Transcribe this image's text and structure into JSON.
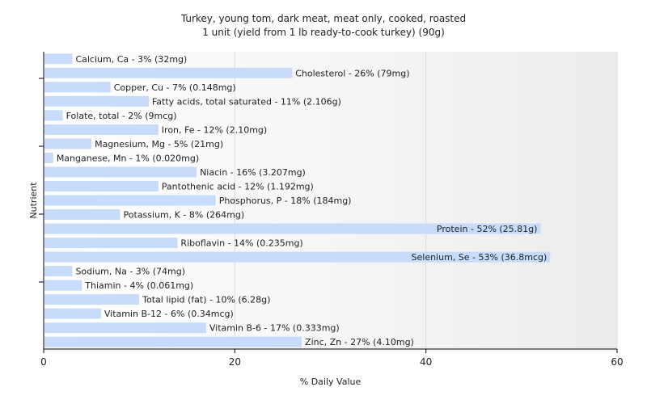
{
  "chart_data": {
    "type": "bar",
    "orientation": "horizontal",
    "title": "Turkey, young tom, dark meat, meat only, cooked, roasted",
    "subtitle": "1 unit (yield from 1 lb ready-to-cook turkey) (90g)",
    "xlabel": "% Daily Value",
    "ylabel": "Nutrient",
    "xlim": [
      0,
      60
    ],
    "x_ticks": [
      0,
      20,
      40,
      60
    ],
    "grid": true,
    "bar_color": "#c6dcfa",
    "categories": [
      "Calcium, Ca",
      "Cholesterol",
      "Copper, Cu",
      "Fatty acids, total saturated",
      "Folate, total",
      "Iron, Fe",
      "Magnesium, Mg",
      "Manganese, Mn",
      "Niacin",
      "Pantothenic acid",
      "Phosphorus, P",
      "Potassium, K",
      "Protein",
      "Riboflavin",
      "Selenium, Se",
      "Sodium, Na",
      "Thiamin",
      "Total lipid (fat)",
      "Vitamin B-12",
      "Vitamin B-6",
      "Zinc, Zn"
    ],
    "values": [
      3,
      26,
      7,
      11,
      2,
      12,
      5,
      1,
      16,
      12,
      18,
      8,
      52,
      14,
      53,
      3,
      4,
      10,
      6,
      17,
      27
    ],
    "labels": [
      "Calcium, Ca - 3% (32mg)",
      "Cholesterol - 26% (79mg)",
      "Copper, Cu - 7% (0.148mg)",
      "Fatty acids, total saturated - 11% (2.106g)",
      "Folate, total - 2% (9mcg)",
      "Iron, Fe - 12% (2.10mg)",
      "Magnesium, Mg - 5% (21mg)",
      "Manganese, Mn - 1% (0.020mg)",
      "Niacin - 16% (3.207mg)",
      "Pantothenic acid - 12% (1.192mg)",
      "Phosphorus, P - 18% (184mg)",
      "Potassium, K - 8% (264mg)",
      "Protein - 52% (25.81g)",
      "Riboflavin - 14% (0.235mg)",
      "Selenium, Se - 53% (36.8mcg)",
      "Sodium, Na - 3% (74mg)",
      "Thiamin - 4% (0.061mg)",
      "Total lipid (fat) - 10% (6.28g)",
      "Vitamin B-12 - 6% (0.34mcg)",
      "Vitamin B-6 - 17% (0.333mg)",
      "Zinc, Zn - 27% (4.10mg)"
    ]
  }
}
